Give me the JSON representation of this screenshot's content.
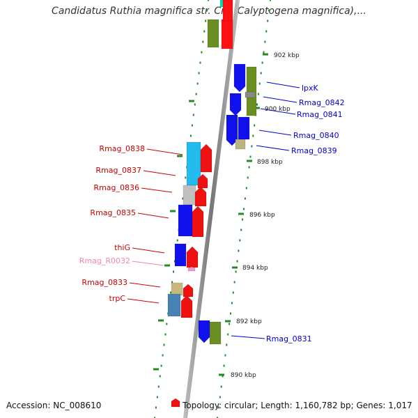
{
  "title": "Candidatus Ruthia magnifica str. Cm (Calyptogena magnifica),...",
  "footer": {
    "accession": "Accession: NC_008610",
    "summary": "Topology: circular; Length: 1,160,782 bp; Genes: 1,017"
  },
  "colors": {
    "backbone": "#999999",
    "ruler": "#228B22",
    "reverse_label": "#cc0000",
    "forward_label": "#0000cc",
    "rna_label": "#ee88aa"
  },
  "ruler_labels": [
    "902 kbp",
    "900 kbp",
    "898 kbp",
    "896 kbp",
    "894 kbp",
    "892 kbp",
    "890 kbp"
  ],
  "labels_left": [
    {
      "text": "Rmag_0838",
      "kind": "protein"
    },
    {
      "text": "Rmag_0837",
      "kind": "protein"
    },
    {
      "text": "Rmag_0836",
      "kind": "protein"
    },
    {
      "text": "Rmag_0835",
      "kind": "protein"
    },
    {
      "text": "thiG",
      "kind": "protein"
    },
    {
      "text": "Rmag_R0032",
      "kind": "rna"
    },
    {
      "text": "Rmag_0833",
      "kind": "protein"
    },
    {
      "text": "trpC",
      "kind": "protein"
    }
  ],
  "labels_right": [
    {
      "text": "lpxK"
    },
    {
      "text": "Rmag_0842"
    },
    {
      "text": "Rmag_0841"
    },
    {
      "text": "Rmag_0840"
    },
    {
      "text": "Rmag_0839"
    },
    {
      "text": "Rmag_0831"
    }
  ]
}
